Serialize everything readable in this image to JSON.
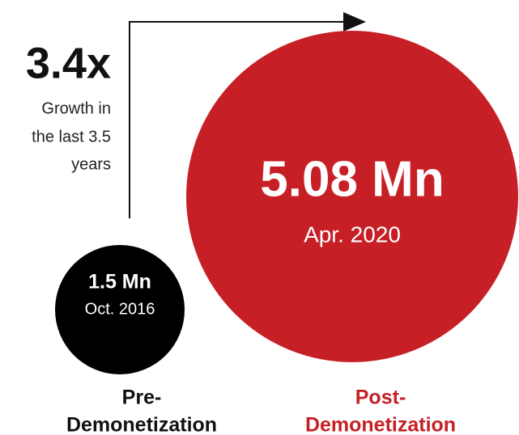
{
  "growth": {
    "value": "3.4x",
    "lines": [
      "Growth in",
      "the last 3.5",
      "years"
    ]
  },
  "pre": {
    "amount": "1.5 Mn",
    "date": "Oct. 2016",
    "label": [
      "Pre-",
      "Demonetization"
    ]
  },
  "post": {
    "amount": "5.08 Mn",
    "date": "Apr. 2020",
    "label": [
      "Post-",
      "Demonetization"
    ]
  }
}
